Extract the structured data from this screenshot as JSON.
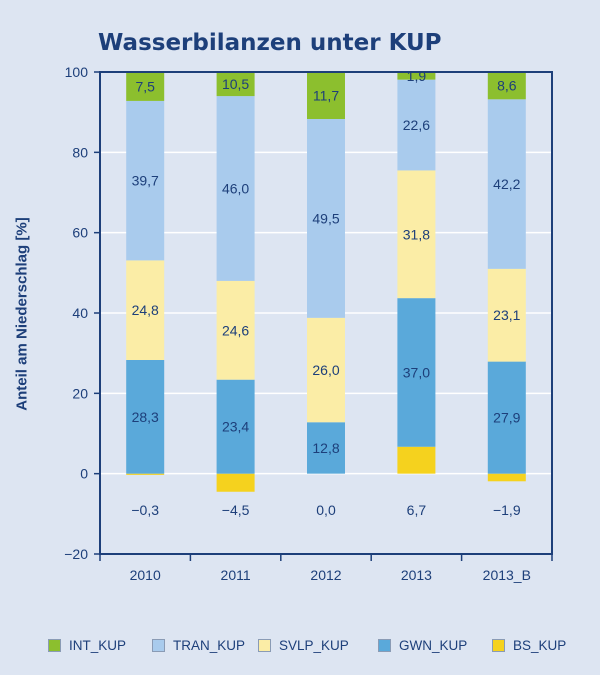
{
  "chart_data": {
    "type": "bar",
    "stacked": true,
    "title": "Wasserbilanzen unter KUP",
    "xlabel": "",
    "ylabel": "Anteil am Niederschlag [%]",
    "ylim": [
      -20,
      100
    ],
    "yticks": [
      -20,
      0,
      20,
      40,
      60,
      80,
      100
    ],
    "ytick_labels": [
      "−20",
      "0",
      "20",
      "40",
      "60",
      "80",
      "100"
    ],
    "grid": true,
    "legend_position": "bottom",
    "categories": [
      "2010",
      "2011",
      "2012",
      "2013",
      "2013_B"
    ],
    "series": [
      {
        "name": "BS_KUP",
        "color": "#f5d21e",
        "values": [
          -0.3,
          -4.5,
          0.0,
          6.7,
          -1.9
        ],
        "labels": [
          "−0,3",
          "−4,5",
          "0,0",
          "6,7",
          "−1,9"
        ]
      },
      {
        "name": "GWN_KUP",
        "color": "#5aa9da",
        "values": [
          28.3,
          23.4,
          12.8,
          37.0,
          27.9
        ],
        "labels": [
          "28,3",
          "23,4",
          "12,8",
          "37,0",
          "27,9"
        ]
      },
      {
        "name": "SVLP_KUP",
        "color": "#fbeda6",
        "values": [
          24.8,
          24.6,
          26.0,
          31.8,
          23.1
        ],
        "labels": [
          "24,8",
          "24,6",
          "26,0",
          "31,8",
          "23,1"
        ]
      },
      {
        "name": "TRAN_KUP",
        "color": "#a9cbed",
        "values": [
          39.7,
          46.0,
          49.5,
          22.6,
          42.2
        ],
        "labels": [
          "39,7",
          "46,0",
          "49,5",
          "22,6",
          "42,2"
        ]
      },
      {
        "name": "INT_KUP",
        "color": "#8cbf2e",
        "values": [
          7.5,
          10.5,
          11.7,
          1.9,
          8.6
        ],
        "labels": [
          "7,5",
          "10,5",
          "11,7",
          "1,9",
          "8,6"
        ]
      }
    ],
    "legend_order": [
      "INT_KUP",
      "TRAN_KUP",
      "SVLP_KUP",
      "GWN_KUP",
      "BS_KUP"
    ]
  }
}
